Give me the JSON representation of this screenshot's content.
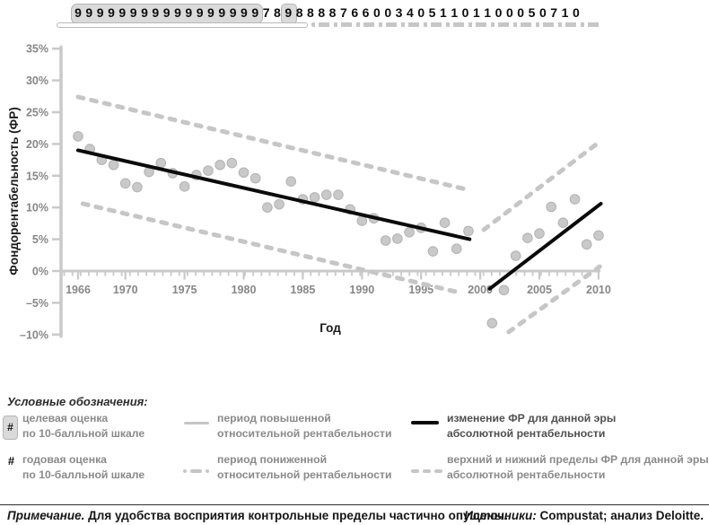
{
  "ratings_row": {
    "digits": [
      "9",
      "9",
      "9",
      "9",
      "9",
      "9",
      "9",
      "9",
      "9",
      "9",
      "9",
      "9",
      "9",
      "9",
      "9",
      "9",
      "9",
      "7",
      "8",
      "9",
      "8",
      "8",
      "8",
      "8",
      "7",
      "6",
      "6",
      "0",
      "0",
      "3",
      "4",
      "0",
      "5",
      "1",
      "1",
      "0",
      "1",
      "1",
      "0",
      "0",
      "0",
      "5",
      "0",
      "7",
      "1",
      "0"
    ],
    "grouped_box_start_index": 0,
    "grouped_box_end_index": 16,
    "single_box_index": 19
  },
  "chart_data": {
    "type": "scatter",
    "title": "",
    "xlabel": "Год",
    "ylabel": "Фондорентабельность (ФР)",
    "ylim": [
      -10,
      35
    ],
    "xlim": [
      1966,
      2010
    ],
    "grid": false,
    "yticks": [
      {
        "value": 35,
        "label": "35%"
      },
      {
        "value": 30,
        "label": "30%"
      },
      {
        "value": 25,
        "label": "25%"
      },
      {
        "value": 20,
        "label": "20%"
      },
      {
        "value": 15,
        "label": "15%"
      },
      {
        "value": 10,
        "label": "10%"
      },
      {
        "value": 5,
        "label": "5%"
      },
      {
        "value": 0,
        "label": "0%"
      },
      {
        "value": -5,
        "label": "–5%"
      },
      {
        "value": -10,
        "label": "–10%"
      }
    ],
    "xticks": [
      {
        "value": 1966,
        "label": "1966"
      },
      {
        "value": 1970,
        "label": "1970"
      },
      {
        "value": 1975,
        "label": "1975"
      },
      {
        "value": 1980,
        "label": "1980"
      },
      {
        "value": 1985,
        "label": "1985"
      },
      {
        "value": 1990,
        "label": "1990"
      },
      {
        "value": 1995,
        "label": "1995"
      },
      {
        "value": 2000,
        "label": "2000"
      },
      {
        "value": 2005,
        "label": "2005"
      },
      {
        "value": 2010,
        "label": "2010"
      }
    ],
    "series": [
      {
        "name": "годовая оценка ФР",
        "type": "scatter",
        "points": [
          [
            1966,
            21.2
          ],
          [
            1967,
            19.2
          ],
          [
            1968,
            17.5
          ],
          [
            1969,
            16.7
          ],
          [
            1970,
            13.8
          ],
          [
            1971,
            13.2
          ],
          [
            1972,
            15.6
          ],
          [
            1973,
            17.0
          ],
          [
            1974,
            15.4
          ],
          [
            1975,
            13.3
          ],
          [
            1976,
            15.1
          ],
          [
            1977,
            15.8
          ],
          [
            1978,
            16.7
          ],
          [
            1979,
            17.0
          ],
          [
            1980,
            15.5
          ],
          [
            1981,
            14.6
          ],
          [
            1982,
            10.0
          ],
          [
            1983,
            10.5
          ],
          [
            1984,
            14.1
          ],
          [
            1985,
            11.3
          ],
          [
            1986,
            11.6
          ],
          [
            1987,
            12.0
          ],
          [
            1988,
            12.0
          ],
          [
            1989,
            9.7
          ],
          [
            1990,
            7.9
          ],
          [
            1991,
            8.3
          ],
          [
            1992,
            4.8
          ],
          [
            1993,
            5.1
          ],
          [
            1994,
            6.1
          ],
          [
            1995,
            6.8
          ],
          [
            1996,
            3.1
          ],
          [
            1997,
            7.6
          ],
          [
            1998,
            3.5
          ],
          [
            1999,
            6.3
          ],
          [
            2001,
            -8.2
          ],
          [
            2002,
            -3.0
          ],
          [
            2003,
            2.4
          ],
          [
            2004,
            5.2
          ],
          [
            2005,
            5.9
          ],
          [
            2006,
            10.1
          ],
          [
            2007,
            7.6
          ],
          [
            2008,
            11.3
          ],
          [
            2009,
            4.2
          ],
          [
            2010,
            5.6
          ]
        ]
      },
      {
        "name": "изменение ФР — эра 1",
        "type": "line",
        "points": [
          [
            1966,
            19.0
          ],
          [
            1999.1,
            5.0
          ]
        ]
      },
      {
        "name": "изменение ФР — эра 2",
        "type": "line",
        "points": [
          [
            2000.8,
            -2.8
          ],
          [
            2010.2,
            10.6
          ]
        ]
      },
      {
        "name": "верхний предел ФР — эра 1",
        "type": "limit",
        "points": [
          [
            1966,
            27.4
          ],
          [
            1998.7,
            12.9
          ]
        ]
      },
      {
        "name": "нижний предел ФР — эра 1",
        "type": "limit",
        "points": [
          [
            1966.4,
            10.6
          ],
          [
            1998.5,
            -3.5
          ]
        ]
      },
      {
        "name": "верхний предел ФР — эра 2",
        "type": "limit",
        "points": [
          [
            2000.3,
            6.5
          ],
          [
            2010.2,
            20.5
          ]
        ]
      },
      {
        "name": "нижний предел ФР — эра 2",
        "type": "limit",
        "points": [
          [
            2002.4,
            -9.6
          ],
          [
            2010.1,
            0.7
          ]
        ]
      }
    ],
    "relative_periods": [
      {
        "style": "solid",
        "label": "период повышенной относительной рентабельности"
      },
      {
        "style": "dashed",
        "label": "период пониженной относительной рентабельности"
      }
    ]
  },
  "legend": {
    "title": "Условные обозначения:",
    "hash_symbol": "#",
    "items": [
      {
        "marker": "hash-boxed",
        "line1": "целевая оценка",
        "line2": "по 10-балльной шкале"
      },
      {
        "marker": "hash",
        "line1": "годовая оценка",
        "line2": "по 10-балльной шкале"
      },
      {
        "marker": "solid-gray-line",
        "line1": "период повышенной",
        "line2": "относительной рентабельности"
      },
      {
        "marker": "dot-dash-gray-line",
        "line1": "период пониженной",
        "line2": "относительной рентабельности"
      },
      {
        "marker": "solid-black-line",
        "line1": "изменение ФР для данной эры",
        "line2": "абсолютной рентабельности"
      },
      {
        "marker": "dashed-gray-line",
        "line1": "верхний и нижний пределы ФР для данной эры",
        "line2": "абсолютной рентабельности"
      }
    ]
  },
  "footer": {
    "note_label": "Примечание.",
    "note_text": " Для удобства восприятия контрольные пределы частично опущены.",
    "sources_label": "Источники:",
    "sources_text": " Compustat; анализ Deloitte."
  },
  "colors": {
    "point_fill": "#c9c9c9",
    "point_stroke": "#b2b2b2",
    "limit_dash": "#c6c6c6",
    "axis_gray": "#c9c9c9",
    "tick_label": "#878787",
    "era_line_black": "#0a0a0a",
    "box_fill": "#dadada"
  }
}
